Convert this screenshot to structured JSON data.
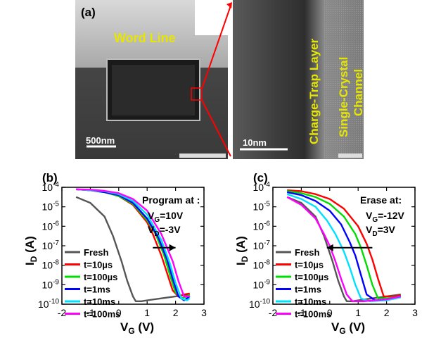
{
  "panel_a": {
    "label": "(a)",
    "word_line": "Word Line",
    "scale_left": "500nm",
    "scale_right": "10nm",
    "charge_trap": "Charge-Trap Layer",
    "channel_line1": "Single-Crystal",
    "channel_line2": "Channel"
  },
  "chart_data": [
    {
      "panel": "(b)",
      "type": "line",
      "title": "",
      "annotation": {
        "heading": "Program at :",
        "vg": "=10V",
        "vd": "=-3V"
      },
      "xlabel": "V",
      "xlabel_sub": "G",
      "xlabel_unit": " (V)",
      "ylabel": "I",
      "ylabel_sub": "D",
      "ylabel_unit": " (A)",
      "xlim": [
        -2,
        3
      ],
      "ylim_exp": [
        -10,
        -4
      ],
      "log_y": true,
      "xticks": [
        "-2",
        "-1",
        "0",
        "1",
        "2",
        "3"
      ],
      "yticks_exp": [
        "-10",
        "-9",
        "-8",
        "-7",
        "-6",
        "-5",
        "-4"
      ],
      "legend_position": "bottom-left",
      "arrow": {
        "from": [
          1.2,
          -7.1
        ],
        "to": [
          2.0,
          -7.1
        ]
      },
      "series": [
        {
          "name": "Fresh",
          "color": "#555555",
          "x": [
            -1.5,
            -1.0,
            -0.5,
            -0.2,
            0.1,
            0.3,
            0.5,
            0.6,
            0.8,
            1.0,
            1.5,
            2.0,
            2.5
          ],
          "y": [
            -4.5,
            -4.8,
            -5.5,
            -6.5,
            -7.8,
            -8.8,
            -9.6,
            -9.85,
            -9.85,
            -9.8,
            -9.7,
            -9.6,
            -9.5
          ]
        },
        {
          "name": "t=10µs",
          "color": "#ff0000",
          "x": [
            -1.5,
            -1.0,
            -0.5,
            0.0,
            0.5,
            1.0,
            1.2,
            1.5,
            1.7,
            1.9,
            2.1,
            2.3,
            2.5
          ],
          "y": [
            -4.1,
            -4.15,
            -4.25,
            -4.45,
            -4.9,
            -5.8,
            -6.4,
            -7.5,
            -8.4,
            -9.3,
            -9.6,
            -9.5,
            -9.45
          ]
        },
        {
          "name": "t=100µs",
          "color": "#00dd00",
          "x": [
            -1.5,
            -1.0,
            -0.5,
            0.0,
            0.5,
            1.0,
            1.3,
            1.6,
            1.8,
            2.0,
            2.2,
            2.4,
            2.5
          ],
          "y": [
            -4.1,
            -4.15,
            -4.25,
            -4.45,
            -4.85,
            -5.7,
            -6.4,
            -7.5,
            -8.5,
            -9.4,
            -9.7,
            -9.6,
            -9.5
          ]
        },
        {
          "name": "t=1ms",
          "color": "#0000ff",
          "x": [
            -1.5,
            -1.0,
            -0.5,
            0.0,
            0.5,
            1.0,
            1.4,
            1.7,
            1.9,
            2.1,
            2.3,
            2.5
          ],
          "y": [
            -4.1,
            -4.15,
            -4.25,
            -4.4,
            -4.8,
            -5.6,
            -6.6,
            -7.7,
            -8.7,
            -9.6,
            -9.8,
            -9.6
          ]
        },
        {
          "name": "t=10ms",
          "color": "#00e0ff",
          "x": [
            -1.5,
            -1.0,
            -0.5,
            0.0,
            0.5,
            1.0,
            1.5,
            1.8,
            2.0,
            2.2,
            2.4,
            2.5
          ],
          "y": [
            -4.1,
            -4.15,
            -4.2,
            -4.35,
            -4.7,
            -5.4,
            -6.7,
            -7.9,
            -8.9,
            -9.7,
            -9.8,
            -9.7
          ]
        },
        {
          "name": "t=100ms",
          "color": "#ff00ff",
          "x": [
            -1.5,
            -1.0,
            -0.5,
            0.0,
            0.5,
            1.0,
            1.5,
            1.9,
            2.1,
            2.3,
            2.5
          ],
          "y": [
            -4.1,
            -4.12,
            -4.18,
            -4.3,
            -4.6,
            -5.2,
            -6.4,
            -7.8,
            -8.8,
            -9.6,
            -9.6
          ]
        }
      ]
    },
    {
      "panel": "(c)",
      "type": "line",
      "title": "",
      "annotation": {
        "heading": "Erase at:",
        "vg": "=-12V",
        "vd": "=3V"
      },
      "xlabel": "V",
      "xlabel_sub": "G",
      "xlabel_unit": " (V)",
      "ylabel": "I",
      "ylabel_sub": "D",
      "ylabel_unit": " (A)",
      "xlim": [
        -2,
        3
      ],
      "ylim_exp": [
        -10,
        -4
      ],
      "log_y": true,
      "xticks": [
        "-2",
        "-1",
        "0",
        "1",
        "2",
        "3"
      ],
      "yticks_exp": [
        "-10",
        "-9",
        "-8",
        "-7",
        "-6",
        "-5",
        "-4"
      ],
      "legend_position": "bottom-left",
      "arrow": {
        "from": [
          1.5,
          -7.1
        ],
        "to": [
          -0.1,
          -7.1
        ]
      },
      "series": [
        {
          "name": "Fresh",
          "color": "#555555",
          "x": [
            -1.5,
            -1.0,
            -0.5,
            -0.2,
            0.1,
            0.3,
            0.5,
            0.6,
            0.8,
            1.0,
            1.5,
            2.0,
            2.5
          ],
          "y": [
            -4.5,
            -4.8,
            -5.5,
            -6.5,
            -7.8,
            -8.8,
            -9.6,
            -9.85,
            -9.85,
            -9.8,
            -9.7,
            -9.6,
            -9.5
          ]
        },
        {
          "name": "t=10µs",
          "color": "#ff0000",
          "x": [
            -1.5,
            -1.0,
            -0.5,
            0.0,
            0.5,
            1.0,
            1.3,
            1.5,
            1.7,
            1.9,
            2.2,
            2.5
          ],
          "y": [
            -4.15,
            -4.2,
            -4.35,
            -4.6,
            -5.1,
            -6.0,
            -6.9,
            -7.7,
            -8.7,
            -9.6,
            -9.6,
            -9.55
          ]
        },
        {
          "name": "t=100µs",
          "color": "#00dd00",
          "x": [
            -1.5,
            -1.0,
            -0.5,
            0.0,
            0.5,
            0.9,
            1.1,
            1.3,
            1.5,
            1.7,
            2.0,
            2.5
          ],
          "y": [
            -4.2,
            -4.3,
            -4.5,
            -4.85,
            -5.5,
            -6.4,
            -7.1,
            -8.0,
            -9.0,
            -9.7,
            -9.7,
            -9.6
          ]
        },
        {
          "name": "t=1ms",
          "color": "#0000ff",
          "x": [
            -1.5,
            -1.0,
            -0.5,
            0.0,
            0.4,
            0.7,
            0.9,
            1.1,
            1.3,
            1.6,
            2.0,
            2.5
          ],
          "y": [
            -4.25,
            -4.4,
            -4.7,
            -5.2,
            -5.9,
            -6.8,
            -7.5,
            -8.5,
            -9.5,
            -9.8,
            -9.75,
            -9.6
          ]
        },
        {
          "name": "t=10ms",
          "color": "#00e0ff",
          "x": [
            -1.5,
            -1.0,
            -0.5,
            -0.1,
            0.2,
            0.5,
            0.7,
            0.9,
            1.1,
            1.4,
            2.0,
            2.5
          ],
          "y": [
            -4.35,
            -4.6,
            -5.0,
            -5.7,
            -6.4,
            -7.3,
            -8.1,
            -9.0,
            -9.7,
            -9.85,
            -9.8,
            -9.65
          ]
        },
        {
          "name": "t=100ms",
          "color": "#ff00ff",
          "x": [
            -1.5,
            -1.0,
            -0.5,
            -0.2,
            0.0,
            0.2,
            0.4,
            0.6,
            0.8,
            1.2,
            2.0,
            2.5
          ],
          "y": [
            -4.5,
            -4.9,
            -5.6,
            -6.4,
            -7.0,
            -7.8,
            -8.7,
            -9.5,
            -9.85,
            -9.85,
            -9.75,
            -9.6
          ]
        }
      ]
    }
  ]
}
